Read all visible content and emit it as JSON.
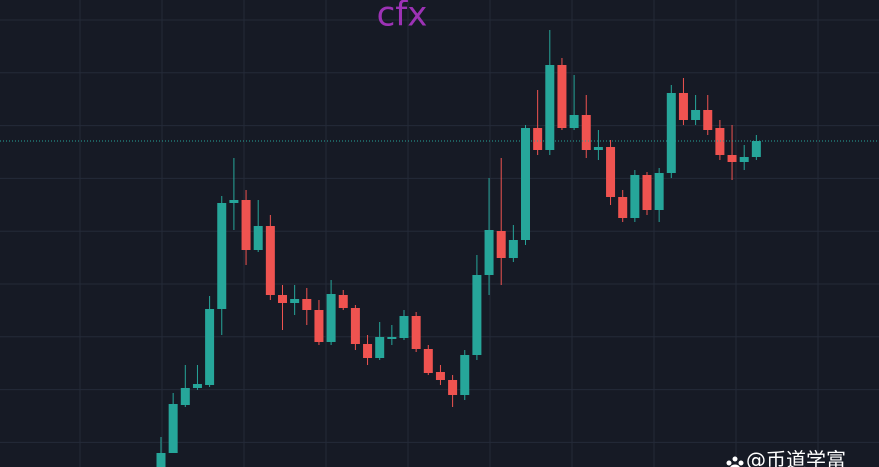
{
  "chart_data": {
    "type": "candlestick",
    "title": "cfx",
    "watermark": "@币道学富",
    "up_color": "#26a69a",
    "down_color": "#ef5350",
    "title_color": "#9c32b5",
    "grid": true,
    "ylim": [
      0,
      467
    ],
    "open": [
      0,
      14,
      62,
      79,
      82,
      158,
      264,
      267,
      217,
      241,
      172,
      164,
      168,
      157,
      125,
      172,
      159,
      123,
      109,
      128,
      129,
      151,
      118,
      95,
      87,
      72,
      112,
      192,
      236,
      209,
      227,
      339,
      317,
      402,
      339,
      352,
      317,
      320,
      270,
      249,
      292,
      257,
      294,
      374,
      347,
      357,
      339,
      312,
      305,
      310
    ],
    "high": [
      30,
      74,
      102,
      102,
      171,
      271,
      309,
      277,
      267,
      252,
      182,
      182,
      179,
      167,
      187,
      177,
      162,
      132,
      145,
      142,
      157,
      155,
      122,
      102,
      92,
      117,
      212,
      289,
      309,
      242,
      342,
      377,
      437,
      409,
      392,
      372,
      337,
      327,
      277,
      297,
      295,
      299,
      382,
      389,
      372,
      372,
      347,
      342,
      322,
      332
    ],
    "low": [
      0,
      14,
      60,
      77,
      80,
      132,
      237,
      202,
      215,
      167,
      137,
      152,
      142,
      122,
      122,
      157,
      117,
      102,
      107,
      122,
      127,
      115,
      92,
      82,
      60,
      67,
      107,
      172,
      182,
      205,
      222,
      312,
      312,
      337,
      337,
      309,
      307,
      262,
      245,
      245,
      252,
      245,
      289,
      342,
      342,
      332,
      307,
      287,
      297,
      307
    ],
    "close": [
      14,
      63,
      79,
      83,
      158,
      264,
      267,
      217,
      241,
      172,
      164,
      168,
      157,
      125,
      173,
      159,
      123,
      109,
      130,
      130,
      151,
      118,
      94,
      87,
      72,
      112,
      192,
      237,
      209,
      227,
      339,
      317,
      402,
      339,
      352,
      317,
      320,
      270,
      249,
      292,
      257,
      294,
      374,
      347,
      357,
      337,
      312,
      305,
      310,
      326
    ]
  }
}
